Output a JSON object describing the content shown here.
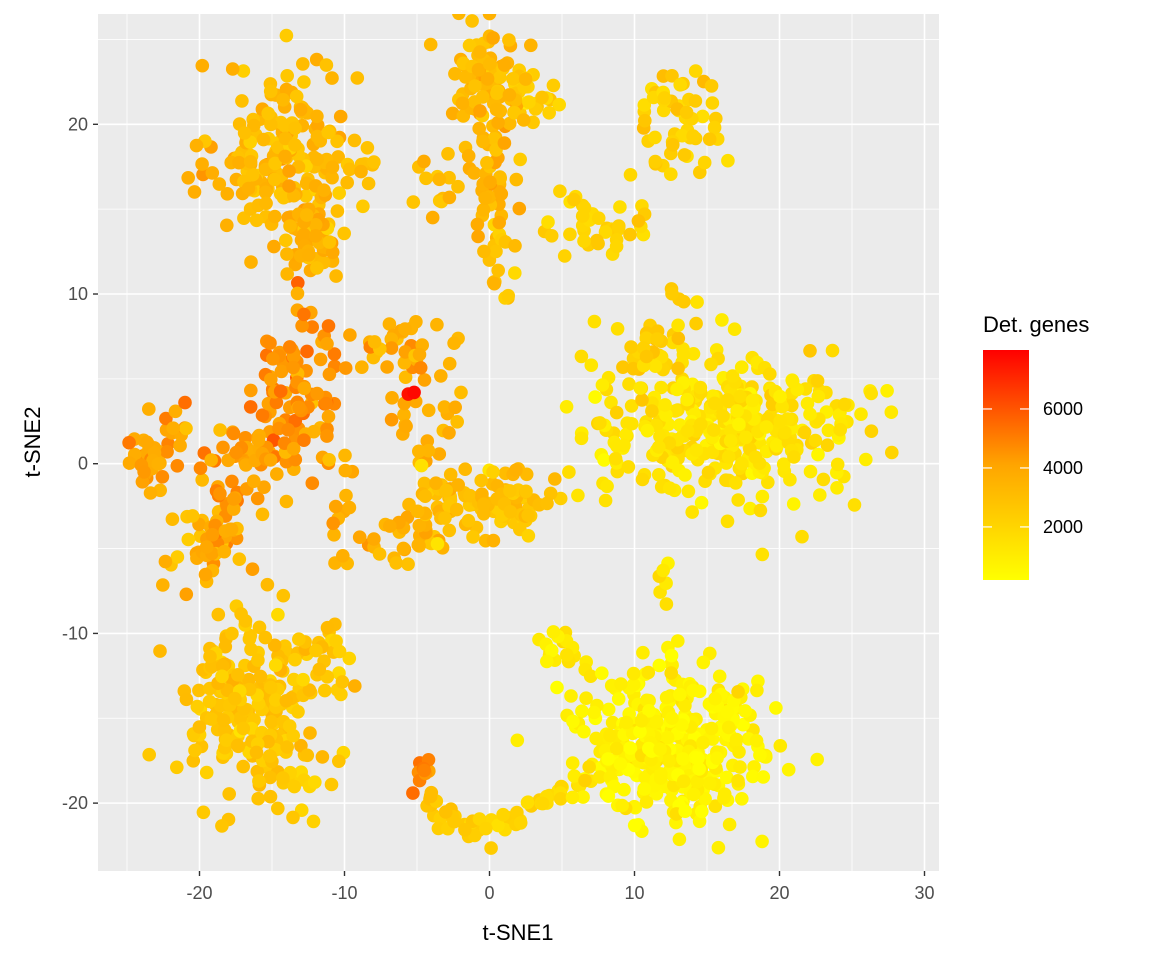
{
  "chart_data": {
    "type": "scatter",
    "xlabel": "t-SNE1",
    "ylabel": "t-SNE2",
    "xlim": [
      -27,
      31
    ],
    "ylim": [
      -24,
      26.5
    ],
    "x_ticks": [
      -20,
      -10,
      0,
      10,
      20,
      30
    ],
    "y_ticks": [
      -20,
      -10,
      0,
      10,
      20
    ],
    "x_tick_labels": [
      "-20",
      "-10",
      "0",
      "10",
      "20",
      "30"
    ],
    "y_tick_labels": [
      "-20",
      "-10",
      "0",
      "10",
      "20"
    ],
    "grid": true,
    "panel_background": "#EBEBEB",
    "legend": {
      "title": "Det. genes",
      "position": "right",
      "range": [
        200,
        8000
      ],
      "ticks": [
        2000,
        4000,
        6000
      ],
      "tick_labels": [
        "2000",
        "4000",
        "6000"
      ],
      "low_color": "#FFFF00",
      "mid_color": "#FFA500",
      "high_color": "#FF0000"
    },
    "clusters": [
      {
        "center": [
          -14,
          18
        ],
        "spread": [
          2.4,
          2.8
        ],
        "n": 200,
        "value": 3200,
        "value_sd": 500
      },
      {
        "center": [
          -12.5,
          13
        ],
        "spread": [
          0.9,
          1.6
        ],
        "n": 40,
        "value": 3800,
        "value_sd": 400
      },
      {
        "center": [
          -8.5,
          17.5
        ],
        "spread": [
          0.6,
          0.6
        ],
        "n": 8,
        "value": 2700,
        "value_sd": 300
      },
      {
        "center": [
          0,
          23
        ],
        "spread": [
          1.5,
          1.6
        ],
        "n": 70,
        "value": 3300,
        "value_sd": 500
      },
      {
        "center": [
          0,
          17
        ],
        "spread": [
          0.7,
          2.2
        ],
        "n": 45,
        "value": 3500,
        "value_sd": 500
      },
      {
        "center": [
          2.8,
          21.5
        ],
        "spread": [
          1.2,
          1.2
        ],
        "n": 30,
        "value": 2500,
        "value_sd": 400
      },
      {
        "center": [
          -3,
          16.5
        ],
        "spread": [
          1.2,
          1.0
        ],
        "n": 15,
        "value": 3000,
        "value_sd": 400
      },
      {
        "center": [
          0.8,
          12
        ],
        "spread": [
          0.6,
          1.2
        ],
        "n": 18,
        "value": 2600,
        "value_sd": 400
      },
      {
        "center": [
          13.2,
          20
        ],
        "spread": [
          1.4,
          1.8
        ],
        "n": 55,
        "value": 2200,
        "value_sd": 400
      },
      {
        "center": [
          7.5,
          14
        ],
        "spread": [
          1.8,
          0.9
        ],
        "n": 25,
        "value": 2100,
        "value_sd": 300
      },
      {
        "center": [
          -13,
          5.5
        ],
        "spread": [
          1.5,
          2.0
        ],
        "n": 70,
        "value": 4600,
        "value_sd": 600
      },
      {
        "center": [
          -16,
          0.8
        ],
        "spread": [
          2.0,
          1.6
        ],
        "n": 55,
        "value": 4300,
        "value_sd": 600
      },
      {
        "center": [
          -23,
          0.3
        ],
        "spread": [
          1.0,
          1.0
        ],
        "n": 45,
        "value": 4000,
        "value_sd": 500
      },
      {
        "center": [
          -19,
          -4.5
        ],
        "spread": [
          1.3,
          1.7
        ],
        "n": 45,
        "value": 3500,
        "value_sd": 500
      },
      {
        "center": [
          -6,
          6.5
        ],
        "spread": [
          1.8,
          1.6
        ],
        "n": 25,
        "value": 3800,
        "value_sd": 500
      },
      {
        "center": [
          -6.5,
          -4.5
        ],
        "spread": [
          1.6,
          1.0
        ],
        "n": 25,
        "value": 3700,
        "value_sd": 500
      },
      {
        "center": [
          -3,
          -2.5
        ],
        "spread": [
          1.3,
          0.9
        ],
        "n": 40,
        "value": 3200,
        "value_sd": 400
      },
      {
        "center": [
          1,
          -2.2
        ],
        "spread": [
          1.5,
          1.2
        ],
        "n": 65,
        "value": 2900,
        "value_sd": 400
      },
      {
        "center": [
          -2.5,
          3
        ],
        "spread": [
          0.5,
          1.5
        ],
        "n": 10,
        "value": 3400,
        "value_sd": 300
      },
      {
        "center": [
          16,
          2
        ],
        "spread": [
          5.0,
          2.4
        ],
        "n": 380,
        "value": 1400,
        "value_sd": 400
      },
      {
        "center": [
          11.5,
          6.5
        ],
        "spread": [
          1.3,
          1.2
        ],
        "n": 30,
        "value": 2400,
        "value_sd": 400
      },
      {
        "center": [
          13,
          10
        ],
        "spread": [
          0.3,
          0.6
        ],
        "n": 4,
        "value": 2500,
        "value_sd": 300
      },
      {
        "center": [
          -16.5,
          -14.5
        ],
        "spread": [
          2.3,
          2.6
        ],
        "n": 230,
        "value": 2700,
        "value_sd": 400
      },
      {
        "center": [
          -11,
          -11
        ],
        "spread": [
          0.8,
          1.6
        ],
        "n": 25,
        "value": 2600,
        "value_sd": 400
      },
      {
        "center": [
          -12.5,
          -18.8
        ],
        "spread": [
          0.8,
          0.3
        ],
        "n": 7,
        "value": 2600,
        "value_sd": 300
      },
      {
        "center": [
          12.5,
          -16.5
        ],
        "spread": [
          3.2,
          2.2
        ],
        "n": 380,
        "value": 700,
        "value_sd": 350
      },
      {
        "center": [
          12,
          -7
        ],
        "spread": [
          0.3,
          0.8
        ],
        "n": 6,
        "value": 1500,
        "value_sd": 300
      },
      {
        "center": [
          5,
          -11
        ],
        "spread": [
          0.9,
          0.6
        ],
        "n": 8,
        "value": 1400,
        "value_sd": 300
      },
      {
        "center": [
          -4.7,
          -18.3
        ],
        "spread": [
          0.3,
          0.6
        ],
        "n": 10,
        "value": 4800,
        "value_sd": 400
      }
    ],
    "arcs": [
      {
        "points": [
          [
            -4.5,
            -19.5
          ],
          [
            -3.5,
            -20.8
          ],
          [
            -1.5,
            -21.4
          ],
          [
            0.5,
            -21.4
          ],
          [
            2.5,
            -20.5
          ],
          [
            4.5,
            -19.3
          ],
          [
            6.5,
            -18.5
          ]
        ],
        "n": 60,
        "spread": 0.35,
        "value_from": 2900,
        "value_to": 1300,
        "value_sd": 300
      },
      {
        "points": [
          [
            -12.5,
            2.5
          ],
          [
            -11,
            0.8
          ],
          [
            -10,
            -1.5
          ],
          [
            -10,
            -3.5
          ],
          [
            -10.5,
            -6
          ]
        ],
        "n": 18,
        "spread": 0.5,
        "value": 3600,
        "value_sd": 400
      },
      {
        "points": [
          [
            -18.8,
            -6.5
          ],
          [
            -18.3,
            -3.5
          ],
          [
            -17.5,
            -1.5
          ],
          [
            -16.5,
            0.5
          ],
          [
            -15.2,
            2.8
          ],
          [
            -14.5,
            5
          ]
        ],
        "n": 30,
        "spread": 0.5,
        "value": 4400,
        "value_sd": 500
      },
      {
        "points": [
          [
            -6.5,
            4.5
          ],
          [
            -5.8,
            2.5
          ],
          [
            -4.8,
            1
          ],
          [
            -3.5,
            -0.5
          ],
          [
            -2.5,
            -1.5
          ]
        ],
        "n": 15,
        "spread": 0.35,
        "value": 3500,
        "value_sd": 400
      },
      {
        "points": [
          [
            -8.5,
            6
          ],
          [
            -7,
            7.5
          ],
          [
            -5,
            8
          ]
        ],
        "n": 10,
        "spread": 0.3,
        "value": 3200,
        "value_sd": 300
      },
      {
        "points": [
          [
            4.5,
            16
          ],
          [
            6.5,
            14.5
          ],
          [
            8.5,
            13.5
          ],
          [
            10,
            15.5
          ]
        ],
        "n": 14,
        "spread": 0.4,
        "value": 2000,
        "value_sd": 300
      },
      {
        "points": [
          [
            3.5,
            -10
          ],
          [
            5.5,
            -11.5
          ],
          [
            7.5,
            -12.5
          ]
        ],
        "n": 10,
        "spread": 0.4,
        "value": 1300,
        "value_sd": 300
      }
    ],
    "highlight_points": [
      {
        "x": -5.6,
        "y": 4.1,
        "value": 7600
      },
      {
        "x": -5.2,
        "y": 4.2,
        "value": 7800
      },
      {
        "x": -21,
        "y": 3.6,
        "value": 5400
      },
      {
        "x": -12.8,
        "y": 8.8,
        "value": 5200
      }
    ]
  }
}
